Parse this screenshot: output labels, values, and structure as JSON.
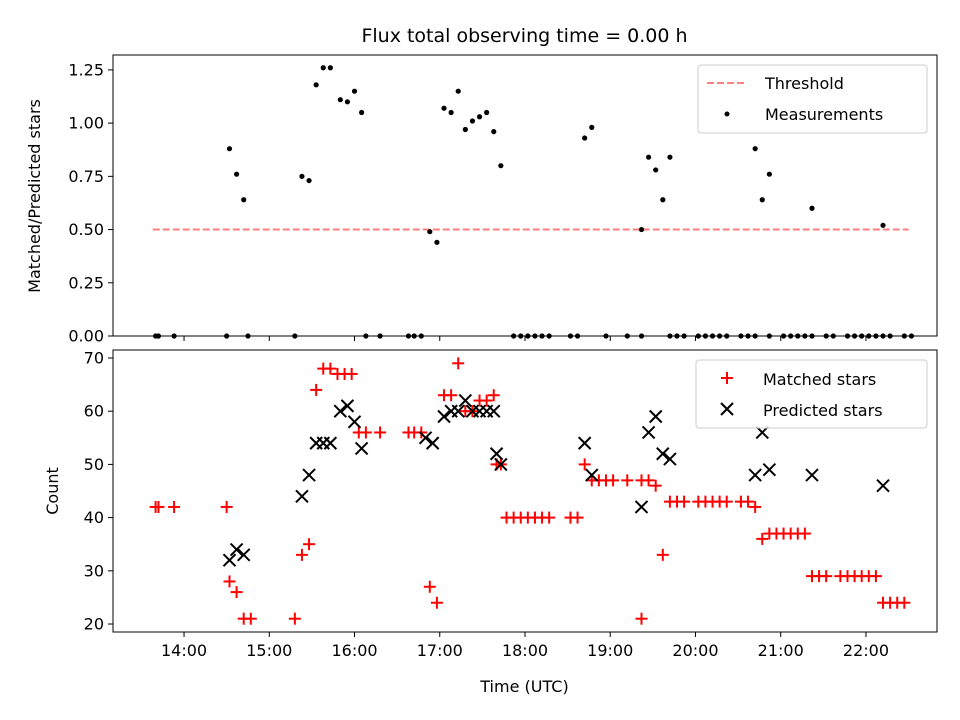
{
  "title": "Flux total observing time = 0.00 h",
  "chart_data": [
    {
      "type": "scatter",
      "xlabel": "",
      "ylabel": "Matched/Predicted stars",
      "xlim": [
        "13:10",
        "22:50"
      ],
      "ylim": [
        0,
        1.32
      ],
      "yticks": [
        "0.00",
        "0.25",
        "0.50",
        "0.75",
        "1.00",
        "1.25"
      ],
      "ytick_values": [
        0,
        0.25,
        0.5,
        0.75,
        1.0,
        1.25
      ],
      "grid": false,
      "legend_position": "upper right",
      "threshold": {
        "name": "Threshold",
        "value": 0.5,
        "x_range": [
          "13:38",
          "22:30"
        ],
        "color": "#ff7f7f",
        "style": "dashed"
      },
      "series": [
        {
          "name": "Measurements",
          "marker": "dot",
          "color": "#000000",
          "points": [
            [
              "13:40",
              0
            ],
            [
              "13:42",
              0
            ],
            [
              "13:53",
              0
            ],
            [
              "14:30",
              0
            ],
            [
              "14:45",
              0
            ],
            [
              "15:18",
              0
            ],
            [
              "16:08",
              0
            ],
            [
              "16:18",
              0
            ],
            [
              "16:38",
              0
            ],
            [
              "16:42",
              0
            ],
            [
              "16:47",
              0
            ],
            [
              "17:52",
              0
            ],
            [
              "17:57",
              0
            ],
            [
              "18:02",
              0
            ],
            [
              "18:07",
              0
            ],
            [
              "18:12",
              0
            ],
            [
              "18:17",
              0
            ],
            [
              "18:32",
              0
            ],
            [
              "18:37",
              0
            ],
            [
              "18:57",
              0
            ],
            [
              "19:12",
              0
            ],
            [
              "19:22",
              0
            ],
            [
              "19:42",
              0
            ],
            [
              "19:47",
              0
            ],
            [
              "19:52",
              0
            ],
            [
              "20:02",
              0
            ],
            [
              "20:07",
              0
            ],
            [
              "20:12",
              0
            ],
            [
              "20:17",
              0
            ],
            [
              "20:22",
              0
            ],
            [
              "20:32",
              0
            ],
            [
              "20:37",
              0
            ],
            [
              "20:42",
              0
            ],
            [
              "20:52",
              0
            ],
            [
              "21:02",
              0
            ],
            [
              "21:07",
              0
            ],
            [
              "21:12",
              0
            ],
            [
              "21:17",
              0
            ],
            [
              "21:22",
              0
            ],
            [
              "21:32",
              0
            ],
            [
              "21:37",
              0
            ],
            [
              "21:47",
              0
            ],
            [
              "21:52",
              0
            ],
            [
              "21:57",
              0
            ],
            [
              "22:02",
              0
            ],
            [
              "22:07",
              0
            ],
            [
              "22:12",
              0
            ],
            [
              "22:17",
              0
            ],
            [
              "22:27",
              0
            ],
            [
              "22:32",
              0
            ],
            [
              "14:32",
              0.88
            ],
            [
              "14:37",
              0.76
            ],
            [
              "14:42",
              0.64
            ],
            [
              "15:23",
              0.75
            ],
            [
              "15:28",
              0.73
            ],
            [
              "15:33",
              1.18
            ],
            [
              "15:38",
              1.26
            ],
            [
              "15:43",
              1.26
            ],
            [
              "15:50",
              1.11
            ],
            [
              "15:55",
              1.1
            ],
            [
              "16:00",
              1.15
            ],
            [
              "16:05",
              1.05
            ],
            [
              "16:53",
              0.49
            ],
            [
              "16:58",
              0.44
            ],
            [
              "17:03",
              1.07
            ],
            [
              "17:08",
              1.05
            ],
            [
              "17:13",
              1.15
            ],
            [
              "17:18",
              0.97
            ],
            [
              "17:23",
              1.01
            ],
            [
              "17:28",
              1.03
            ],
            [
              "17:33",
              1.05
            ],
            [
              "17:38",
              0.96
            ],
            [
              "17:43",
              0.8
            ],
            [
              "18:42",
              0.93
            ],
            [
              "18:47",
              0.98
            ],
            [
              "19:22",
              0.5
            ],
            [
              "19:27",
              0.84
            ],
            [
              "19:32",
              0.78
            ],
            [
              "19:37",
              0.64
            ],
            [
              "19:42",
              0.84
            ],
            [
              "20:42",
              0.88
            ],
            [
              "20:47",
              0.64
            ],
            [
              "20:52",
              0.76
            ],
            [
              "21:22",
              0.6
            ],
            [
              "22:12",
              0.52
            ]
          ]
        }
      ]
    },
    {
      "type": "scatter",
      "xlabel": "Time (UTC)",
      "ylabel": "Count",
      "xlim": [
        "13:10",
        "22:50"
      ],
      "ylim": [
        18.5,
        71.5
      ],
      "yticks": [
        "20",
        "30",
        "40",
        "50",
        "60",
        "70"
      ],
      "ytick_values": [
        20,
        30,
        40,
        50,
        60,
        70
      ],
      "xticks": [
        "14:00",
        "15:00",
        "16:00",
        "17:00",
        "18:00",
        "19:00",
        "20:00",
        "21:00",
        "22:00"
      ],
      "grid": false,
      "legend_position": "upper right",
      "series": [
        {
          "name": "Matched stars",
          "marker": "plus",
          "color": "#ff0000",
          "points": [
            [
              "13:40",
              42
            ],
            [
              "13:42",
              42
            ],
            [
              "13:53",
              42
            ],
            [
              "14:30",
              42
            ],
            [
              "14:32",
              28
            ],
            [
              "14:37",
              26
            ],
            [
              "14:42",
              21
            ],
            [
              "14:47",
              21
            ],
            [
              "15:18",
              21
            ],
            [
              "15:23",
              33
            ],
            [
              "15:28",
              35
            ],
            [
              "15:33",
              64
            ],
            [
              "15:38",
              68
            ],
            [
              "15:43",
              68
            ],
            [
              "15:48",
              67
            ],
            [
              "15:53",
              67
            ],
            [
              "15:58",
              67
            ],
            [
              "16:03",
              56
            ],
            [
              "16:08",
              56
            ],
            [
              "16:18",
              56
            ],
            [
              "16:38",
              56
            ],
            [
              "16:42",
              56
            ],
            [
              "16:47",
              56
            ],
            [
              "16:53",
              27
            ],
            [
              "16:58",
              24
            ],
            [
              "17:03",
              63
            ],
            [
              "17:08",
              63
            ],
            [
              "17:13",
              69
            ],
            [
              "17:18",
              60
            ],
            [
              "17:23",
              60
            ],
            [
              "17:28",
              62
            ],
            [
              "17:33",
              62
            ],
            [
              "17:38",
              63
            ],
            [
              "17:40",
              50
            ],
            [
              "17:43",
              50
            ],
            [
              "17:47",
              40
            ],
            [
              "17:52",
              40
            ],
            [
              "17:57",
              40
            ],
            [
              "18:02",
              40
            ],
            [
              "18:07",
              40
            ],
            [
              "18:12",
              40
            ],
            [
              "18:17",
              40
            ],
            [
              "18:32",
              40
            ],
            [
              "18:37",
              40
            ],
            [
              "18:42",
              50
            ],
            [
              "18:47",
              47
            ],
            [
              "18:52",
              47
            ],
            [
              "18:57",
              47
            ],
            [
              "19:02",
              47
            ],
            [
              "19:12",
              47
            ],
            [
              "19:22",
              21
            ],
            [
              "19:22",
              47
            ],
            [
              "19:27",
              47
            ],
            [
              "19:32",
              46
            ],
            [
              "19:37",
              33
            ],
            [
              "19:42",
              43
            ],
            [
              "19:47",
              43
            ],
            [
              "19:52",
              43
            ],
            [
              "20:02",
              43
            ],
            [
              "20:07",
              43
            ],
            [
              "20:12",
              43
            ],
            [
              "20:17",
              43
            ],
            [
              "20:22",
              43
            ],
            [
              "20:32",
              43
            ],
            [
              "20:37",
              43
            ],
            [
              "20:42",
              42
            ],
            [
              "20:47",
              36
            ],
            [
              "20:52",
              37
            ],
            [
              "20:57",
              37
            ],
            [
              "21:02",
              37
            ],
            [
              "21:07",
              37
            ],
            [
              "21:12",
              37
            ],
            [
              "21:17",
              37
            ],
            [
              "21:22",
              29
            ],
            [
              "21:27",
              29
            ],
            [
              "21:32",
              29
            ],
            [
              "21:42",
              29
            ],
            [
              "21:47",
              29
            ],
            [
              "21:52",
              29
            ],
            [
              "21:57",
              29
            ],
            [
              "22:02",
              29
            ],
            [
              "22:07",
              29
            ],
            [
              "22:12",
              24
            ],
            [
              "22:17",
              24
            ],
            [
              "22:22",
              24
            ],
            [
              "22:27",
              24
            ]
          ]
        },
        {
          "name": "Predicted stars",
          "marker": "x",
          "color": "#000000",
          "points": [
            [
              "14:32",
              32
            ],
            [
              "14:37",
              34
            ],
            [
              "14:42",
              33
            ],
            [
              "15:23",
              44
            ],
            [
              "15:28",
              48
            ],
            [
              "15:33",
              54
            ],
            [
              "15:38",
              54
            ],
            [
              "15:43",
              54
            ],
            [
              "15:50",
              60
            ],
            [
              "15:55",
              61
            ],
            [
              "16:00",
              58
            ],
            [
              "16:05",
              53
            ],
            [
              "16:50",
              55
            ],
            [
              "16:55",
              54
            ],
            [
              "17:03",
              59
            ],
            [
              "17:08",
              60
            ],
            [
              "17:13",
              60
            ],
            [
              "17:18",
              62
            ],
            [
              "17:23",
              60
            ],
            [
              "17:28",
              60
            ],
            [
              "17:33",
              60
            ],
            [
              "17:38",
              60
            ],
            [
              "17:40",
              52
            ],
            [
              "17:43",
              50
            ],
            [
              "18:42",
              54
            ],
            [
              "18:47",
              48
            ],
            [
              "19:22",
              42
            ],
            [
              "19:27",
              56
            ],
            [
              "19:32",
              59
            ],
            [
              "19:37",
              52
            ],
            [
              "19:42",
              51
            ],
            [
              "20:42",
              48
            ],
            [
              "20:47",
              56
            ],
            [
              "20:52",
              49
            ],
            [
              "21:22",
              48
            ],
            [
              "22:12",
              46
            ]
          ]
        }
      ]
    }
  ]
}
